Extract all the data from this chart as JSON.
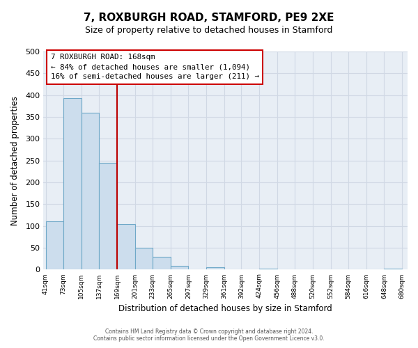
{
  "title_line1": "7, ROXBURGH ROAD, STAMFORD, PE9 2XE",
  "title_line2": "Size of property relative to detached houses in Stamford",
  "xlabel": "Distribution of detached houses by size in Stamford",
  "ylabel": "Number of detached properties",
  "bar_edges": [
    41,
    73,
    105,
    137,
    169,
    201,
    233,
    265,
    297,
    329,
    361,
    392,
    424,
    456,
    488,
    520,
    552,
    584,
    616,
    648,
    680
  ],
  "bar_heights": [
    110,
    393,
    360,
    245,
    105,
    50,
    30,
    8,
    0,
    5,
    0,
    0,
    2,
    0,
    0,
    0,
    0,
    0,
    0,
    2
  ],
  "bar_color": "#ccdded",
  "bar_edge_color": "#6fa8c8",
  "property_line_x": 169,
  "property_line_color": "#bb0000",
  "ylim": [
    0,
    500
  ],
  "yticks": [
    0,
    50,
    100,
    150,
    200,
    250,
    300,
    350,
    400,
    450,
    500
  ],
  "annotation_title": "7 ROXBURGH ROAD: 168sqm",
  "annotation_line1": "← 84% of detached houses are smaller (1,094)",
  "annotation_line2": "16% of semi-detached houses are larger (211) →",
  "footer_line1": "Contains HM Land Registry data © Crown copyright and database right 2024.",
  "footer_line2": "Contains public sector information licensed under the Open Government Licence v3.0.",
  "grid_color": "#d0d8e4",
  "background_color": "#e8eef5",
  "title_fontsize": 11,
  "subtitle_fontsize": 9
}
